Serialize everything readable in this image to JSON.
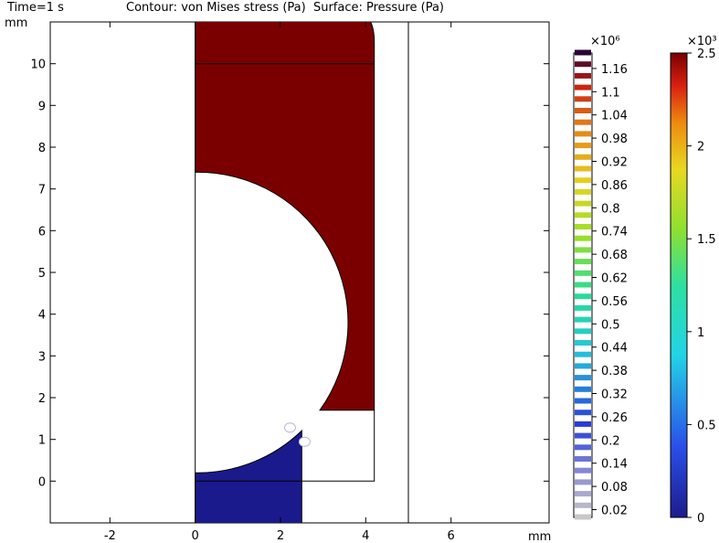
{
  "header": {
    "time": "Time=1 s",
    "plot_description": "Contour: von Mises stress (Pa)  Surface: Pressure (Pa)"
  },
  "chart_data": {
    "type": "heatmap",
    "x_axis": {
      "unit": "mm",
      "range": [
        -3.4,
        8.3
      ],
      "ticks": [
        -2,
        0,
        2,
        4,
        6
      ],
      "tick_labels": [
        "-2",
        "0",
        "2",
        "4",
        "6"
      ]
    },
    "y_axis": {
      "unit": "mm",
      "range": [
        -1.0,
        11.0
      ],
      "ticks": [
        0,
        1,
        2,
        3,
        4,
        5,
        6,
        7,
        8,
        9,
        10
      ],
      "tick_labels": [
        "0",
        "1",
        "2",
        "3",
        "4",
        "5",
        "6",
        "7",
        "8",
        "9",
        "10"
      ]
    },
    "geometry": {
      "circle_center": [
        0,
        3.8
      ],
      "circle_radius": 3.6,
      "channel_right_x": 4.2,
      "boundary_x": 5.0,
      "top_line_y": 10.0,
      "step_y": 1.7,
      "bottom_line_y": 0.0,
      "lower_block_right_x": 2.5
    },
    "surface": {
      "quantity": "Pressure (Pa)",
      "upper_region_value": 2500,
      "lower_region_value": 0,
      "upper_region_color": "#7a0000",
      "lower_region_color": "#1a1a8c"
    },
    "contour_legend": {
      "exponent": "×10⁶",
      "labels": [
        "1.16",
        "1.1",
        "1.04",
        "0.98",
        "0.92",
        "0.86",
        "0.8",
        "0.74",
        "0.68",
        "0.62",
        "0.56",
        "0.5",
        "0.44",
        "0.38",
        "0.32",
        "0.26",
        "0.2",
        "0.14",
        "0.08",
        "0.02"
      ],
      "values": [
        1.16,
        1.1,
        1.04,
        0.98,
        0.92,
        0.86,
        0.8,
        0.74,
        0.68,
        0.62,
        0.56,
        0.5,
        0.44,
        0.38,
        0.32,
        0.26,
        0.2,
        0.14,
        0.08,
        0.02
      ],
      "range": [
        0.0,
        1.2
      ]
    },
    "surface_legend": {
      "exponent": "×10³",
      "labels": [
        "2.5",
        "2",
        "1.5",
        "1",
        "0.5",
        "0"
      ],
      "values": [
        2.5,
        2,
        1.5,
        1,
        0.5,
        0
      ],
      "range": [
        0,
        2.5
      ]
    }
  }
}
